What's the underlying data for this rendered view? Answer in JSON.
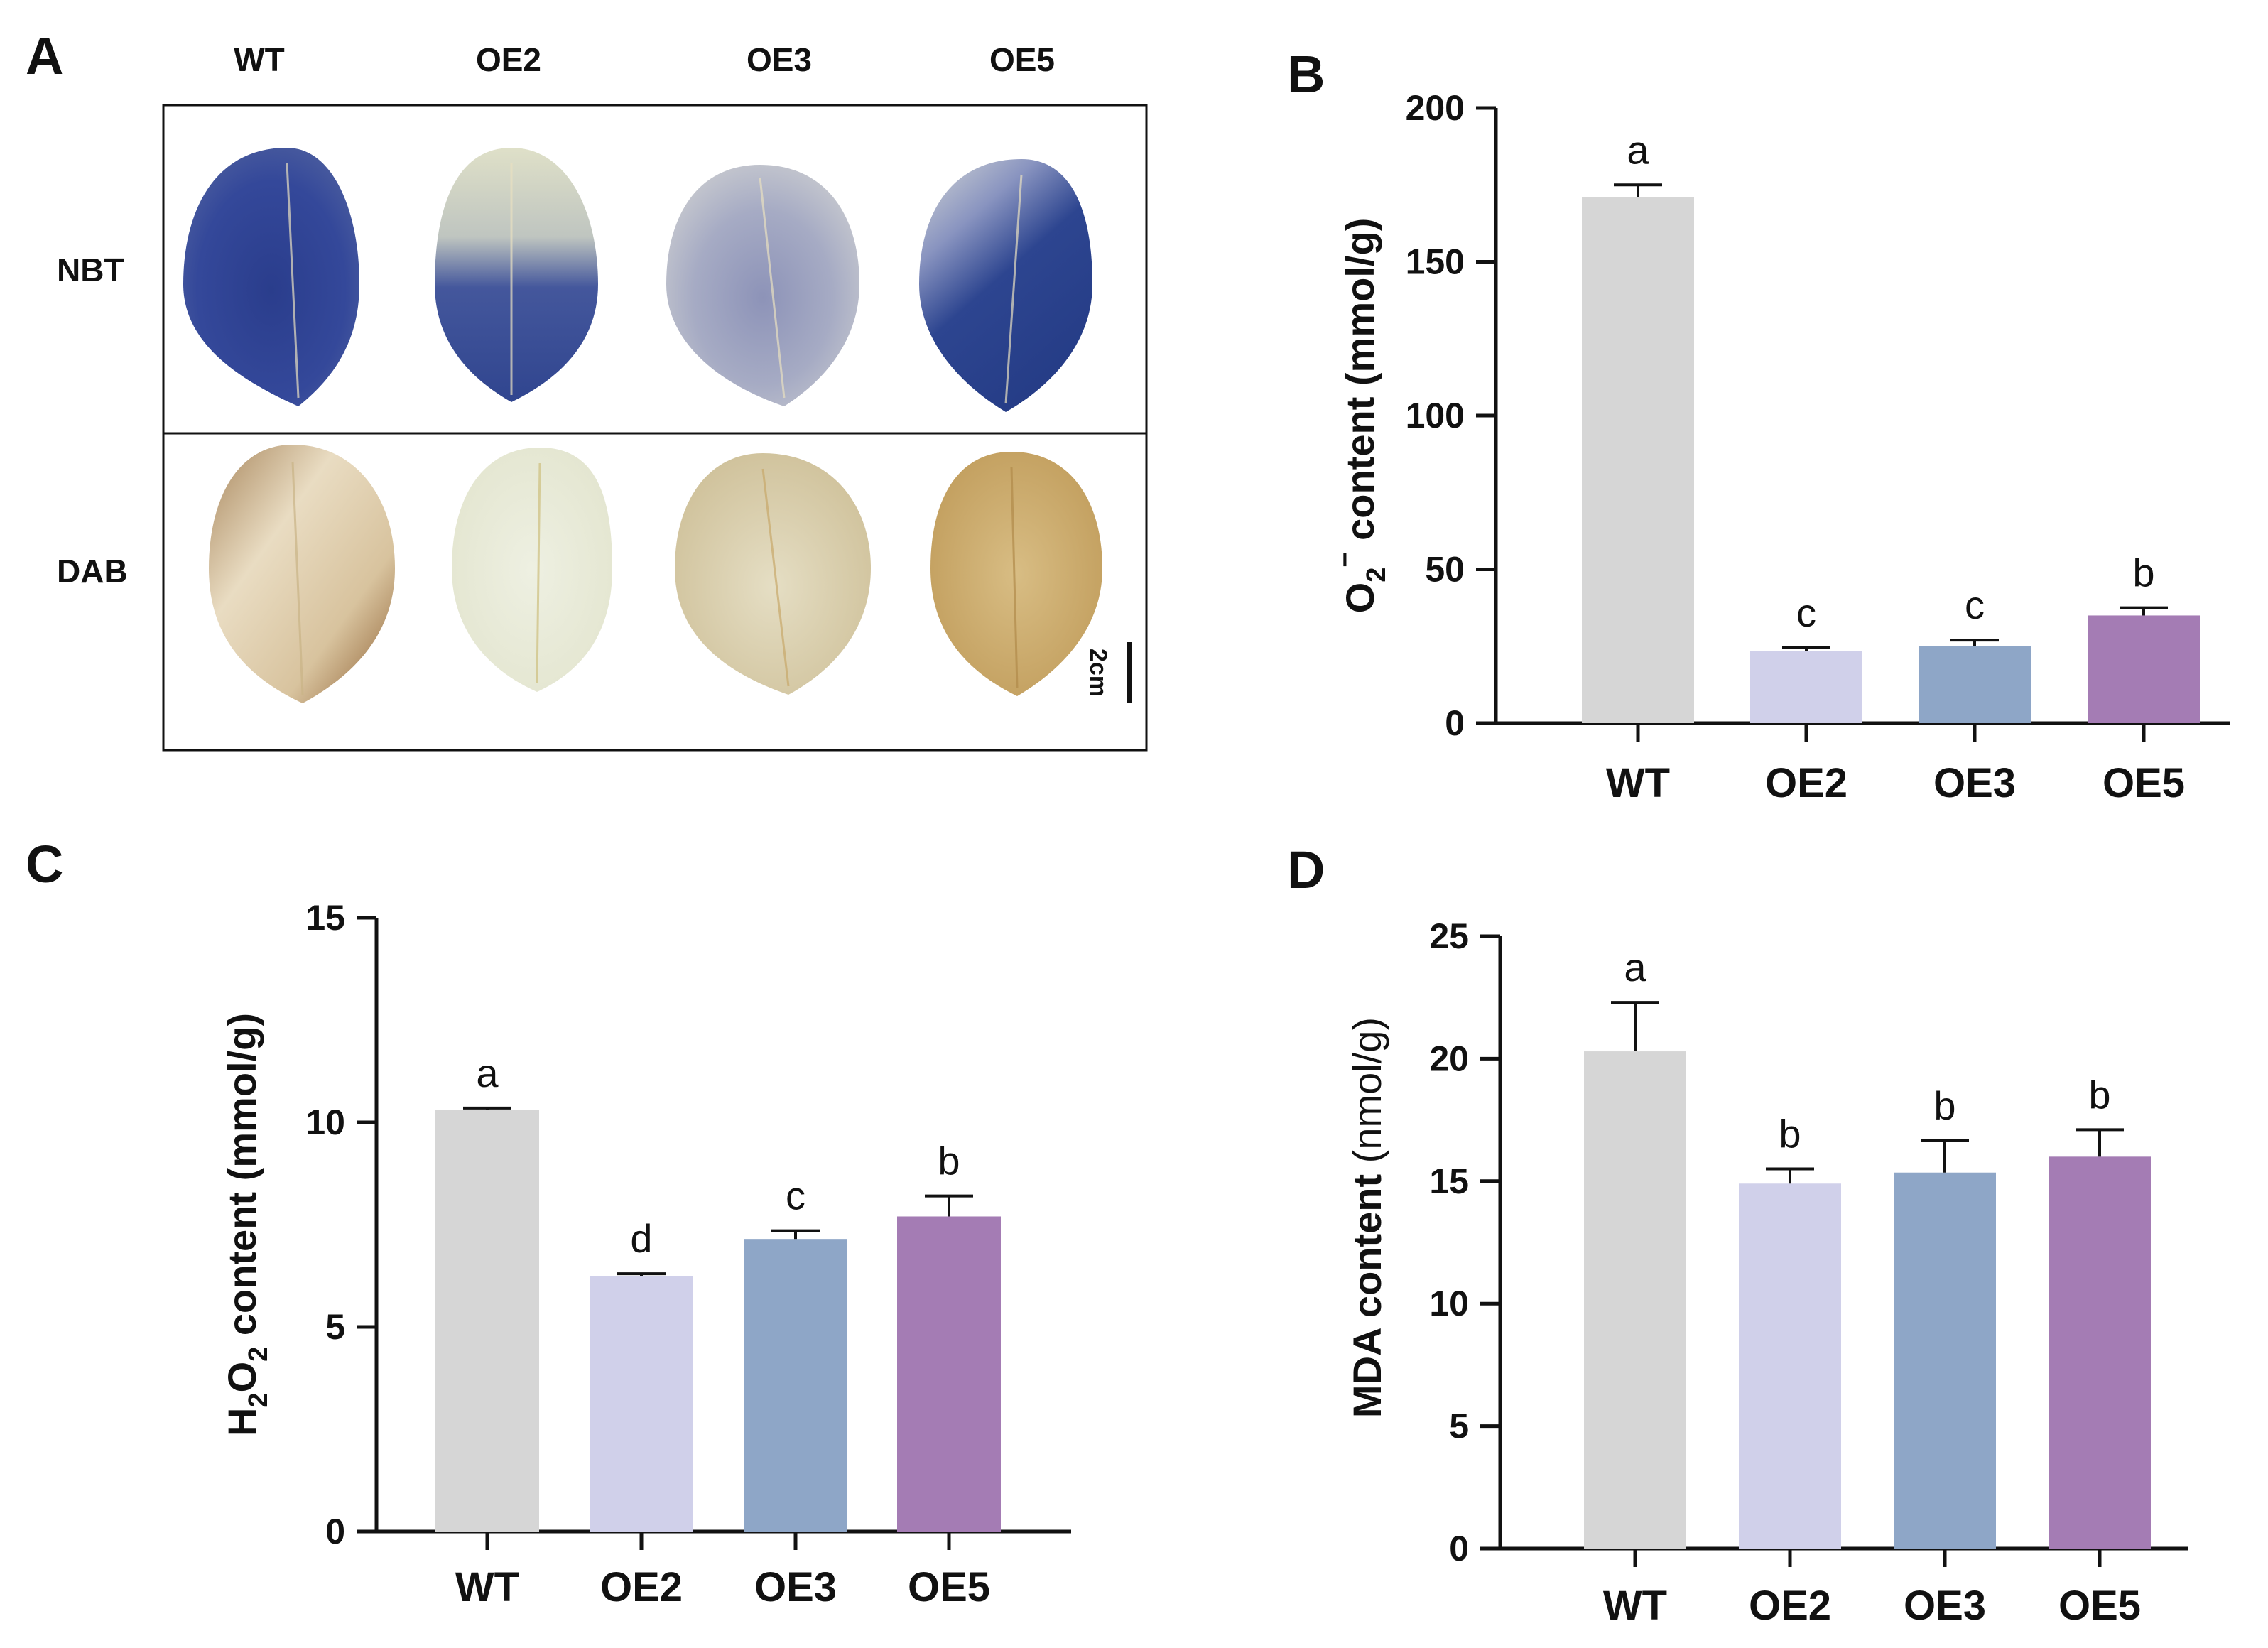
{
  "panels": {
    "A": {
      "label": "A",
      "columns": [
        "WT",
        "OE2",
        "OE3",
        "OE5"
      ],
      "rows": [
        "NBT",
        "DAB"
      ],
      "scale_bar": "2cm"
    },
    "B": {
      "label": "B"
    },
    "C": {
      "label": "C"
    },
    "D": {
      "label": "D"
    }
  },
  "colors": {
    "WT": "#d6d6d6",
    "OE2": "#d0d0ea",
    "OE3": "#8ea6c7",
    "OE5": "#a47cb4"
  },
  "chart_data": [
    {
      "panel": "B",
      "type": "bar",
      "categories": [
        "WT",
        "OE2",
        "OE3",
        "OE5"
      ],
      "values": [
        171,
        23.5,
        25,
        35
      ],
      "errors": [
        4,
        1,
        2,
        2.5
      ],
      "significance": [
        "a",
        "c",
        "c",
        "b"
      ],
      "ylabel_parts": [
        "O",
        "2",
        "−",
        " content (mmol/g)"
      ],
      "ylim": [
        0,
        200
      ],
      "yticks": [
        0,
        50,
        100,
        150,
        200
      ]
    },
    {
      "panel": "C",
      "type": "bar",
      "categories": [
        "WT",
        "OE2",
        "OE3",
        "OE5"
      ],
      "values": [
        10.3,
        6.25,
        7.15,
        7.7
      ],
      "errors": [
        0.05,
        0.05,
        0.2,
        0.5
      ],
      "significance": [
        "a",
        "d",
        "c",
        "b"
      ],
      "ylabel_parts": [
        "H",
        "2",
        "O",
        "2",
        " content (mmol/g)"
      ],
      "ylim": [
        0,
        15
      ],
      "yticks": [
        0,
        5,
        10,
        15
      ]
    },
    {
      "panel": "D",
      "type": "bar",
      "categories": [
        "WT",
        "OE2",
        "OE3",
        "OE5"
      ],
      "values": [
        20.3,
        14.9,
        15.35,
        16.0
      ],
      "errors": [
        2.0,
        0.6,
        1.3,
        1.1
      ],
      "significance": [
        "a",
        "b",
        "b",
        "b"
      ],
      "ylabel_parts": [
        "MDA content ",
        "(nmol/g)"
      ],
      "ylim": [
        0,
        25
      ],
      "yticks": [
        0,
        5,
        10,
        15,
        20,
        25
      ]
    }
  ]
}
